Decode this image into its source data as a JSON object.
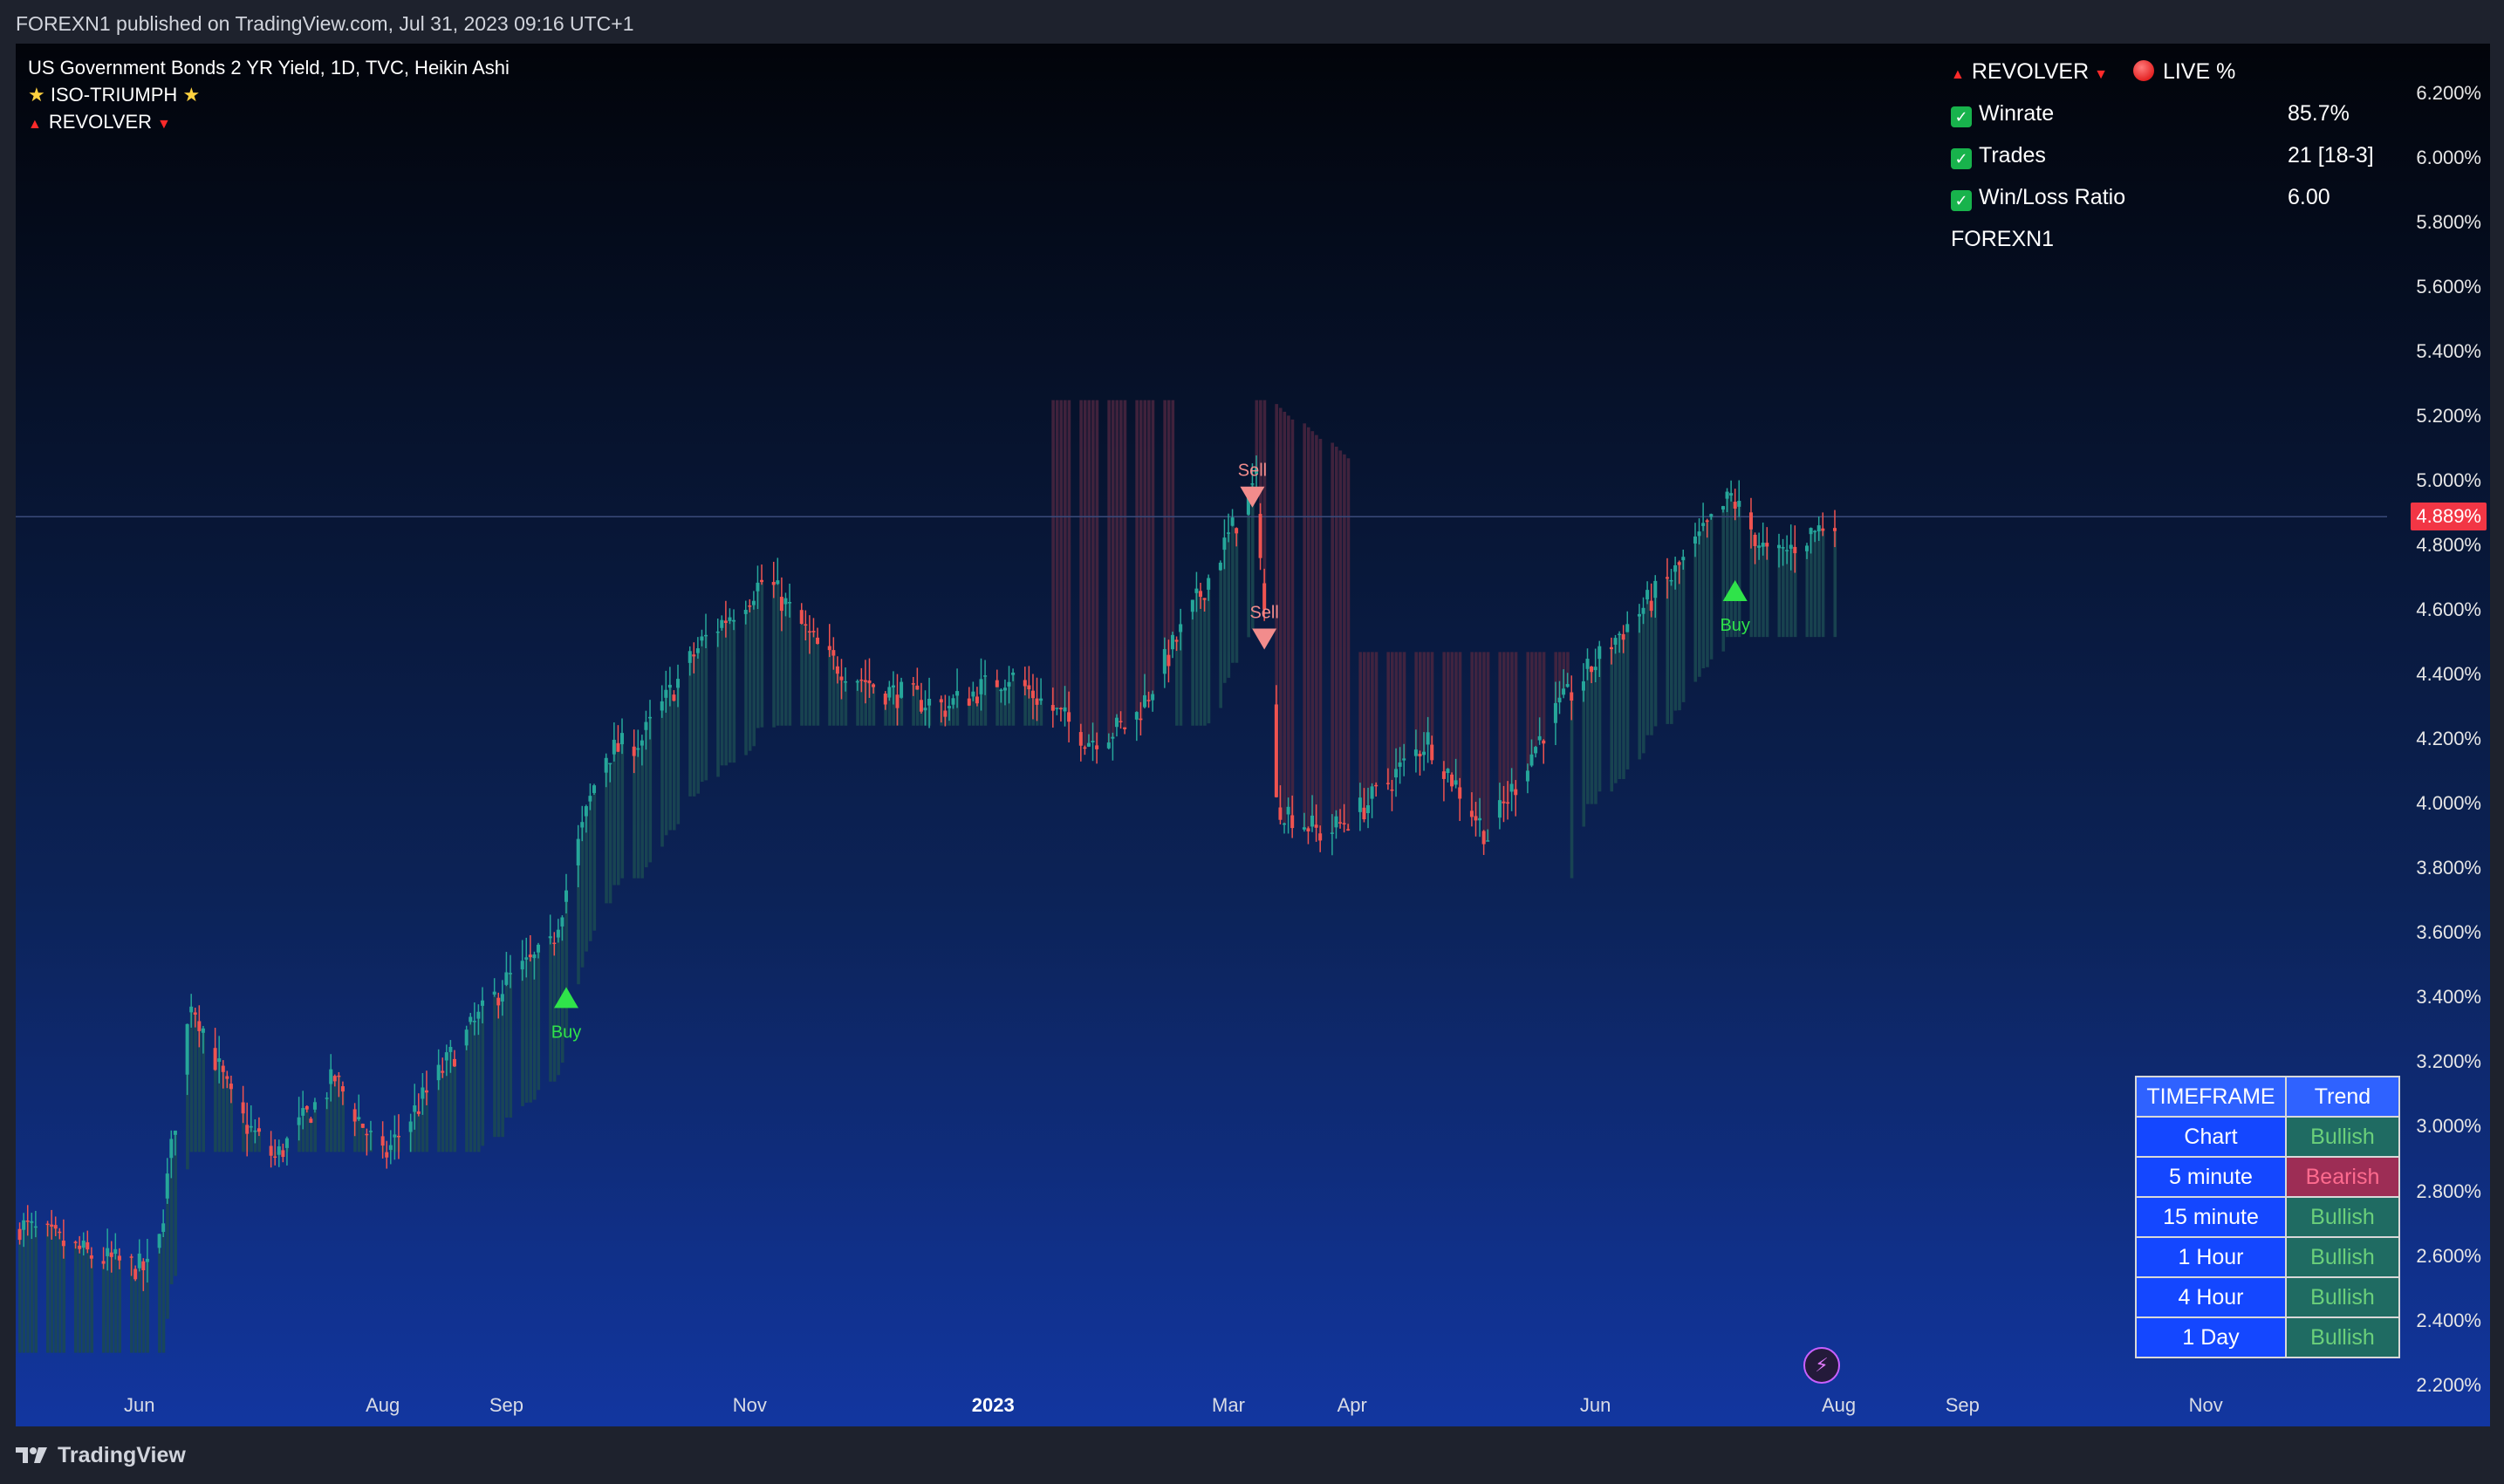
{
  "publish_line": "FOREXN1 published on TradingView.com, Jul 31, 2023 09:16 UTC+1",
  "legend": {
    "symbol_line": "US Government Bonds 2 YR Yield, 1D, TVC, Heikin Ashi",
    "indicator_1": "ISO-TRIUMPH",
    "indicator_2": "REVOLVER"
  },
  "stats": {
    "title": "REVOLVER",
    "live_label": "LIVE %",
    "rows": [
      {
        "label": "Winrate",
        "value": "85.7%"
      },
      {
        "label": "Trades",
        "value": "21 [18-3]"
      },
      {
        "label": "Win/Loss Ratio",
        "value": "6.00"
      }
    ],
    "author": "FOREXN1"
  },
  "timeframe_table": {
    "header": [
      "TIMEFRAME",
      "Trend"
    ],
    "rows": [
      {
        "tf": "Chart",
        "trend": "Bullish"
      },
      {
        "tf": "5 minute",
        "trend": "Bearish"
      },
      {
        "tf": "15 minute",
        "trend": "Bullish"
      },
      {
        "tf": "1 Hour",
        "trend": "Bullish"
      },
      {
        "tf": "4 Hour",
        "trend": "Bullish"
      },
      {
        "tf": "1 Day",
        "trend": "Bullish"
      }
    ]
  },
  "footer": {
    "brand": "TradingView"
  },
  "colors": {
    "bull": "#26a69a",
    "bear": "#ef5350",
    "bull_zone": "#1b4a52",
    "bear_zone": "#4a2640",
    "buy_marker": "#2fe34a",
    "sell_marker": "#f28c8c",
    "last_price_tag": "#f23645"
  },
  "chart_data": {
    "type": "candlestick",
    "style": "Heikin Ashi",
    "x_axis_labels": [
      "Jun",
      "Aug",
      "Sep",
      "Nov",
      "2023",
      "Mar",
      "Apr",
      "Jun",
      "Aug",
      "Sep",
      "Nov"
    ],
    "y_axis_labels": [
      "6.200%",
      "6.000%",
      "5.800%",
      "5.600%",
      "5.400%",
      "5.200%",
      "5.000%",
      "4.800%",
      "4.600%",
      "4.400%",
      "4.200%",
      "4.000%",
      "3.800%",
      "3.600%",
      "3.400%",
      "3.200%",
      "3.000%",
      "2.800%",
      "2.600%",
      "2.400%",
      "2.200%"
    ],
    "ylim": [
      2.18,
      6.3
    ],
    "last_price": 4.889,
    "last_price_label": "4.889%",
    "close_path": [
      [
        "2022-05-01",
        2.7
      ],
      [
        "2022-05-20",
        2.6
      ],
      [
        "2022-06-05",
        2.55
      ],
      [
        "2022-06-14",
        3.4
      ],
      [
        "2022-06-25",
        3.05
      ],
      [
        "2022-07-05",
        2.9
      ],
      [
        "2022-07-20",
        3.15
      ],
      [
        "2022-08-01",
        2.9
      ],
      [
        "2022-08-20",
        3.25
      ],
      [
        "2022-09-01",
        3.45
      ],
      [
        "2022-09-12",
        3.55
      ],
      [
        "2022-09-25",
        4.15
      ],
      [
        "2022-10-05",
        4.2
      ],
      [
        "2022-10-20",
        4.5
      ],
      [
        "2022-11-05",
        4.7
      ],
      [
        "2022-11-20",
        4.45
      ],
      [
        "2022-12-05",
        4.35
      ],
      [
        "2022-12-20",
        4.3
      ],
      [
        "2023-01-05",
        4.4
      ],
      [
        "2023-01-25",
        4.2
      ],
      [
        "2023-02-05",
        4.25
      ],
      [
        "2023-02-20",
        4.6
      ],
      [
        "2023-03-08",
        5.0
      ],
      [
        "2023-03-10",
        4.6
      ],
      [
        "2023-03-13",
        4.0
      ],
      [
        "2023-03-25",
        3.9
      ],
      [
        "2023-04-05",
        4.0
      ],
      [
        "2023-04-20",
        4.2
      ],
      [
        "2023-05-05",
        3.9
      ],
      [
        "2023-05-20",
        4.25
      ],
      [
        "2023-06-05",
        4.5
      ],
      [
        "2023-06-20",
        4.7
      ],
      [
        "2023-07-05",
        4.95
      ],
      [
        "2023-07-15",
        4.75
      ],
      [
        "2023-07-31",
        4.889
      ]
    ],
    "signals": [
      {
        "type": "Buy",
        "date": "2022-09-16",
        "value": 3.4
      },
      {
        "type": "Sell",
        "date": "2023-03-07",
        "value": 4.95
      },
      {
        "type": "Sell",
        "date": "2023-03-10",
        "value": 4.51
      },
      {
        "type": "Buy",
        "date": "2023-07-06",
        "value": 4.66
      }
    ]
  }
}
